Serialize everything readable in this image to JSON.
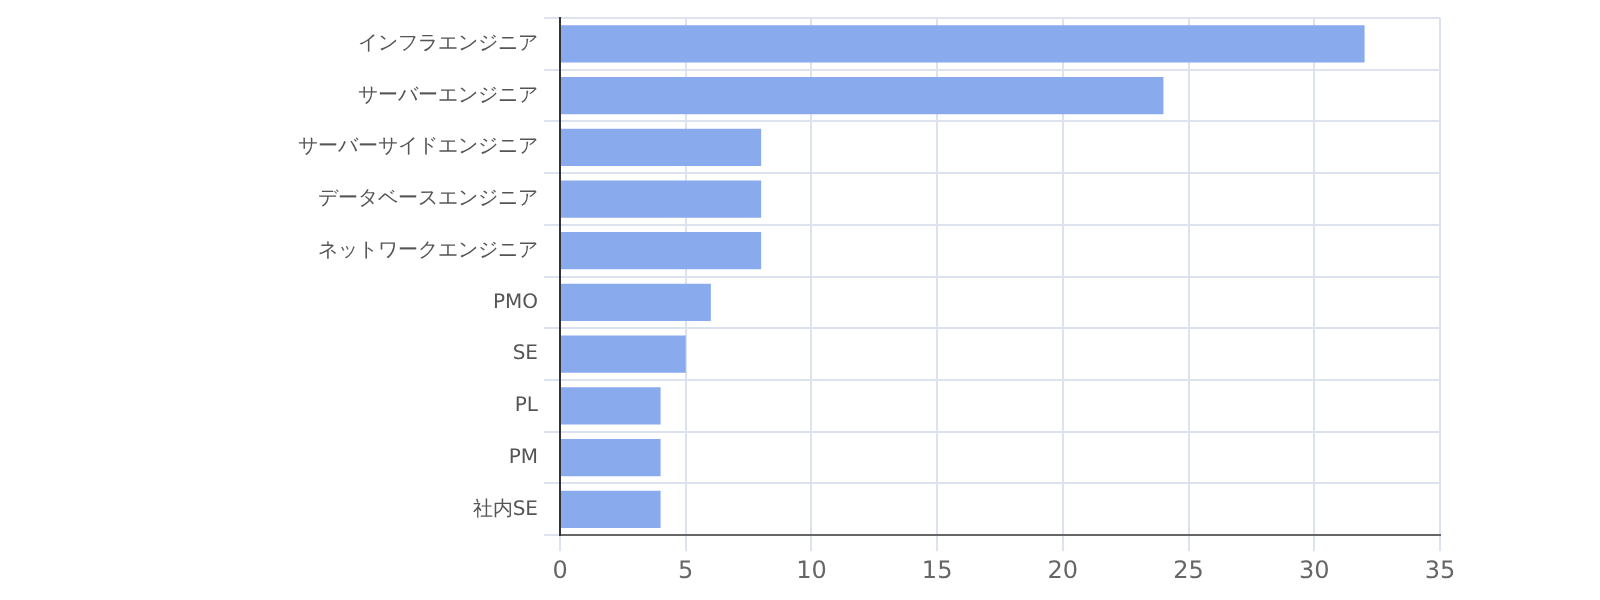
{
  "chart_data": {
    "type": "bar",
    "orientation": "horizontal",
    "categories": [
      "インフラエンジニア",
      "サーバーエンジニア",
      "サーバーサイドエンジニア",
      "データベースエンジニア",
      "ネットワークエンジニア",
      "PMO",
      "SE",
      "PL",
      "PM",
      "社内SE"
    ],
    "values": [
      32,
      24,
      8,
      8,
      8,
      6,
      5,
      4,
      4,
      4
    ],
    "color": "#8aaaee",
    "xlim": [
      0,
      35
    ],
    "xticks": [
      0,
      5,
      10,
      15,
      20,
      25,
      30,
      35
    ],
    "grid": true
  }
}
